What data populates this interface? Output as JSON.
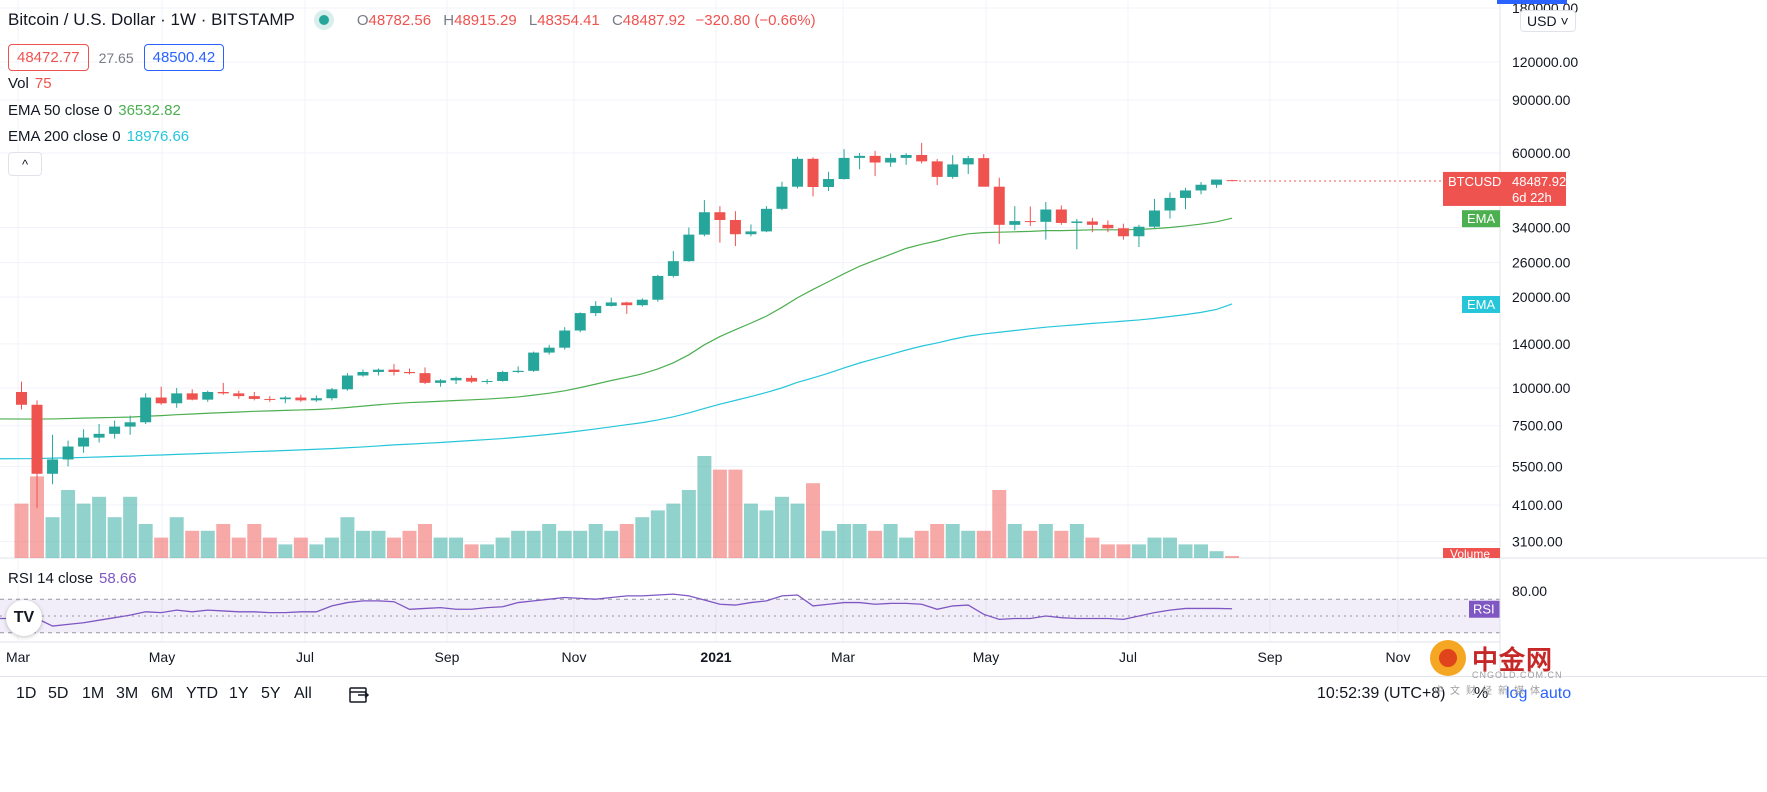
{
  "header": {
    "title": "Bitcoin / U.S. Dollar · 1W · BITSTAMP",
    "ohlc": {
      "o_label": "O",
      "o": "48782.56",
      "h_label": "H",
      "h": "48915.29",
      "l_label": "L",
      "l": "48354.41",
      "c_label": "C",
      "c": "48487.92",
      "change": "−320.80 (−0.66%)"
    },
    "bid": "48472.77",
    "spread": "27.65",
    "ask": "48500.42"
  },
  "legend": {
    "vol_label": "Vol",
    "vol_value": "75",
    "ema50_label": "EMA 50 close 0",
    "ema50_value": "36532.82",
    "ema200_label": "EMA 200 close 0",
    "ema200_value": "18976.66",
    "collapse": "^"
  },
  "rsi": {
    "label": "RSI 14 close",
    "value": "58.66",
    "tag": "RSI",
    "level_label": "80.00"
  },
  "price_axis": {
    "currency": "USD",
    "ticks": [
      "180000.00",
      "120000.00",
      "90000.00",
      "60000.00",
      "34000.00",
      "26000.00",
      "20000.00",
      "14000.00",
      "10000.00",
      "7500.00",
      "5500.00",
      "4100.00",
      "3100.00"
    ],
    "ticks_partial": "34000.00",
    "last_tag_symbol": "BTCUSD",
    "last_tag_price": "48487.92",
    "last_tag_countdown": "6d 22h",
    "ema_tag": "EMA",
    "volume_tag": "Volume"
  },
  "time_axis": {
    "labels": [
      "Mar",
      "May",
      "Jul",
      "Sep",
      "Nov",
      "2021",
      "Mar",
      "May",
      "Jul",
      "Sep",
      "Nov"
    ]
  },
  "timeframes": [
    "1D",
    "5D",
    "1M",
    "3M",
    "6M",
    "YTD",
    "1Y",
    "5Y",
    "All"
  ],
  "footer": {
    "clock": "10:52:39 (UTC+8)",
    "percent": "%",
    "log": "log",
    "auto": "auto"
  },
  "watermark": {
    "text": "中金网",
    "sub": "CNGOLD.COM.CN",
    "sub2": "中文财经新媒体"
  },
  "colors": {
    "up": "#26a69a",
    "down": "#ef5350",
    "ema50": "#4caf50",
    "ema200": "#26c6da",
    "rsi": "#7e57c2",
    "tv": "TV"
  },
  "chart_data": {
    "type": "candlestick",
    "interval": "1W",
    "candles": [
      [
        9700,
        10500,
        8500,
        8800
      ],
      [
        8800,
        9100,
        4000,
        5200
      ],
      [
        5200,
        7000,
        4800,
        5800
      ],
      [
        5800,
        6700,
        5500,
        6400
      ],
      [
        6400,
        7300,
        6100,
        6850
      ],
      [
        6850,
        7600,
        6600,
        7050
      ],
      [
        7050,
        7800,
        6800,
        7450
      ],
      [
        7450,
        8100,
        7000,
        7700
      ],
      [
        7700,
        9600,
        7600,
        9300
      ],
      [
        9300,
        10100,
        8800,
        8900
      ],
      [
        8900,
        10000,
        8600,
        9600
      ],
      [
        9600,
        9900,
        9100,
        9150
      ],
      [
        9150,
        9800,
        9000,
        9700
      ],
      [
        9700,
        10400,
        9500,
        9600
      ],
      [
        9600,
        9800,
        9200,
        9400
      ],
      [
        9400,
        9700,
        9100,
        9200
      ],
      [
        9200,
        9400,
        9000,
        9180
      ],
      [
        9180,
        9400,
        8900,
        9300
      ],
      [
        9300,
        9500,
        9000,
        9100
      ],
      [
        9100,
        9450,
        9000,
        9250
      ],
      [
        9250,
        10000,
        9100,
        9900
      ],
      [
        9900,
        11200,
        9800,
        11000
      ],
      [
        11000,
        11500,
        10900,
        11300
      ],
      [
        11300,
        11600,
        11000,
        11500
      ],
      [
        11500,
        12000,
        11000,
        11300
      ],
      [
        11300,
        11600,
        11100,
        11200
      ],
      [
        11200,
        11700,
        10300,
        10400
      ],
      [
        10400,
        10700,
        10100,
        10600
      ],
      [
        10600,
        10900,
        10300,
        10800
      ],
      [
        10800,
        11000,
        10400,
        10500
      ],
      [
        10500,
        10700,
        10300,
        10550
      ],
      [
        10550,
        11400,
        10500,
        11300
      ],
      [
        11300,
        11800,
        11200,
        11400
      ],
      [
        11400,
        13200,
        11300,
        13100
      ],
      [
        13100,
        13900,
        12900,
        13600
      ],
      [
        13600,
        15900,
        13400,
        15500
      ],
      [
        15500,
        17800,
        15300,
        17700
      ],
      [
        17700,
        19400,
        17300,
        18700
      ],
      [
        18700,
        19900,
        18600,
        19200
      ],
      [
        19200,
        19300,
        17600,
        18800
      ],
      [
        18800,
        19800,
        18600,
        19600
      ],
      [
        19600,
        23700,
        19300,
        23500
      ],
      [
        23500,
        28400,
        23200,
        26300
      ],
      [
        26300,
        34000,
        26200,
        32200
      ],
      [
        32200,
        41900,
        31800,
        38200
      ],
      [
        38200,
        40000,
        30300,
        36000
      ],
      [
        36000,
        38500,
        29500,
        32300
      ],
      [
        32300,
        34800,
        31800,
        33000
      ],
      [
        33000,
        40000,
        32800,
        39200
      ],
      [
        39200,
        48200,
        38800,
        46400
      ],
      [
        46400,
        58300,
        45800,
        57400
      ],
      [
        57400,
        58000,
        43100,
        46300
      ],
      [
        46300,
        52000,
        44900,
        49200
      ],
      [
        49200,
        61800,
        49000,
        57800
      ],
      [
        57800,
        60000,
        53000,
        58700
      ],
      [
        58700,
        61000,
        50300,
        55800
      ],
      [
        55800,
        59800,
        54000,
        57800
      ],
      [
        57800,
        59900,
        54800,
        59100
      ],
      [
        59100,
        64800,
        55400,
        56300
      ],
      [
        56300,
        57300,
        47000,
        50000
      ],
      [
        50000,
        59000,
        49300,
        55000
      ],
      [
        55000,
        58700,
        51100,
        57700
      ],
      [
        57700,
        59500,
        46900,
        46400
      ],
      [
        46400,
        49700,
        30000,
        34700
      ],
      [
        34700,
        40000,
        33300,
        35700
      ],
      [
        35700,
        39900,
        34400,
        35500
      ],
      [
        35500,
        41300,
        31000,
        39000
      ],
      [
        39000,
        40200,
        34700,
        35200
      ],
      [
        35200,
        36300,
        28800,
        35600
      ],
      [
        35600,
        36600,
        32800,
        34700
      ],
      [
        34700,
        35900,
        32800,
        33800
      ],
      [
        33800,
        35000,
        31000,
        31800
      ],
      [
        31800,
        34700,
        29300,
        34200
      ],
      [
        34200,
        42300,
        33800,
        38700
      ],
      [
        38700,
        44400,
        36400,
        42600
      ],
      [
        42600,
        46000,
        39100,
        45100
      ],
      [
        45100,
        48100,
        43800,
        47100
      ],
      [
        47100,
        48900,
        46000,
        49000
      ],
      [
        48782.56,
        48915.29,
        48354.41,
        48487.92
      ]
    ],
    "volume_relative": [
      8,
      12,
      6,
      10,
      8,
      9,
      6,
      9,
      5,
      3,
      6,
      4,
      4,
      5,
      3,
      5,
      3,
      2,
      3,
      2,
      3,
      6,
      4,
      4,
      3,
      4,
      5,
      3,
      3,
      2,
      2,
      3,
      4,
      4,
      5,
      4,
      4,
      5,
      4,
      5,
      6,
      7,
      8,
      10,
      15,
      13,
      13,
      8,
      7,
      9,
      8,
      11,
      4,
      5,
      5,
      4,
      5,
      3,
      4,
      5,
      5,
      4,
      4,
      10,
      5,
      4,
      5,
      4,
      5,
      3,
      2,
      2,
      2,
      3,
      3,
      2,
      2,
      1,
      0.3
    ],
    "ema50": [
      7900,
      7890,
      7900,
      7920,
      7950,
      7970,
      7990,
      8010,
      8060,
      8100,
      8160,
      8200,
      8250,
      8290,
      8330,
      8370,
      8400,
      8430,
      8460,
      8490,
      8540,
      8620,
      8710,
      8800,
      8880,
      8950,
      8990,
      9040,
      9090,
      9140,
      9190,
      9260,
      9340,
      9470,
      9610,
      9790,
      10030,
      10300,
      10590,
      10850,
      11140,
      11560,
      12120,
      12880,
      13900,
      14800,
      15600,
      16400,
      17300,
      18500,
      19900,
      21200,
      22500,
      23900,
      25300,
      26500,
      27700,
      29000,
      29900,
      30700,
      31700,
      32400,
      32700,
      32800,
      32900,
      33000,
      33200,
      33200,
      33300,
      33400,
      33400,
      33400,
      33500,
      33700,
      34000,
      34400,
      34900,
      35500,
      36500
    ],
    "ema200": [
      5830,
      5840,
      5860,
      5870,
      5890,
      5910,
      5930,
      5950,
      5980,
      6000,
      6030,
      6050,
      6080,
      6100,
      6130,
      6160,
      6180,
      6210,
      6240,
      6270,
      6300,
      6340,
      6380,
      6430,
      6480,
      6520,
      6560,
      6600,
      6650,
      6700,
      6750,
      6800,
      6870,
      6940,
      7020,
      7110,
      7210,
      7320,
      7440,
      7560,
      7680,
      7840,
      8030,
      8270,
      8560,
      8840,
      9100,
      9370,
      9670,
      10010,
      10440,
      10800,
      11200,
      11650,
      12100,
      12500,
      12920,
      13360,
      13760,
      14100,
      14500,
      14850,
      15100,
      15300,
      15500,
      15700,
      15900,
      16050,
      16200,
      16370,
      16500,
      16650,
      16800,
      17000,
      17250,
      17500,
      17800,
      18200,
      18976.66
    ],
    "rsi": [
      47,
      47,
      38,
      40,
      42,
      45,
      48,
      51,
      55,
      54,
      57,
      55,
      57,
      56,
      55,
      55,
      54,
      54,
      55,
      55,
      62,
      66,
      68,
      68,
      67,
      58,
      59,
      60,
      58,
      58,
      60,
      61,
      66,
      68,
      70,
      72,
      71,
      70,
      72,
      74,
      74,
      75,
      76,
      74,
      69,
      64,
      63,
      66,
      68,
      74,
      75,
      62,
      64,
      66,
      66,
      64,
      65,
      65,
      64,
      58,
      62,
      63,
      52,
      46,
      47,
      47,
      50,
      48,
      47,
      47,
      47,
      46,
      50,
      54,
      57,
      59,
      59,
      59,
      58.66
    ],
    "rsi_levels": [
      70,
      50,
      30
    ]
  }
}
